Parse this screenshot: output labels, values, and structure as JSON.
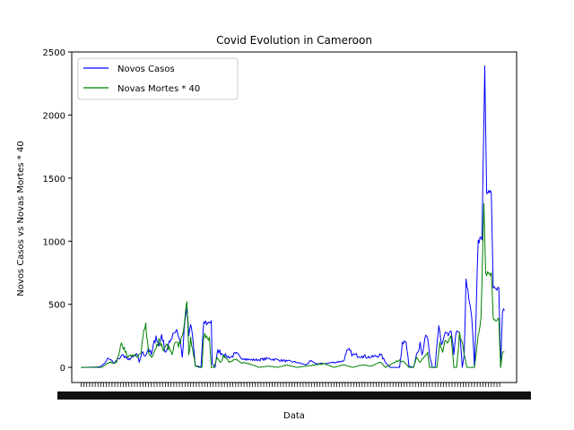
{
  "chart_data": {
    "type": "line",
    "title": "Covid Evolution in Cameroon",
    "xlabel": "Data",
    "ylabel": "Novos Casos vs Novas Mortes * 40",
    "ylim": [
      -120,
      2500
    ],
    "y_ticks": [
      0,
      500,
      1000,
      1500,
      2000,
      2500
    ],
    "x_ticks_note": "dense overlapping date labels (unreadable)",
    "x_count": 450,
    "legend": "top-left",
    "grid": false,
    "colors": {
      "Novos Casos": "#0000ff",
      "Novas Mortes * 40": "#008000"
    },
    "series": [
      {
        "name": "Novos Casos",
        "keypoints": [
          [
            0,
            0
          ],
          [
            15,
            2
          ],
          [
            20,
            5
          ],
          [
            25,
            30
          ],
          [
            28,
            70
          ],
          [
            32,
            60
          ],
          [
            35,
            30
          ],
          [
            40,
            70
          ],
          [
            45,
            100
          ],
          [
            50,
            60
          ],
          [
            55,
            80
          ],
          [
            60,
            100
          ],
          [
            62,
            40
          ],
          [
            65,
            120
          ],
          [
            68,
            90
          ],
          [
            72,
            150
          ],
          [
            75,
            100
          ],
          [
            80,
            250
          ],
          [
            83,
            170
          ],
          [
            86,
            260
          ],
          [
            90,
            120
          ],
          [
            95,
            200
          ],
          [
            98,
            270
          ],
          [
            102,
            300
          ],
          [
            106,
            200
          ],
          [
            108,
            80
          ],
          [
            111,
            380
          ],
          [
            113,
            470
          ],
          [
            115,
            250
          ],
          [
            117,
            340
          ],
          [
            119,
            250
          ],
          [
            122,
            10
          ],
          [
            125,
            10
          ],
          [
            128,
            0
          ],
          [
            131,
            360
          ],
          [
            135,
            350
          ],
          [
            139,
            370
          ],
          [
            140,
            30
          ],
          [
            143,
            0
          ],
          [
            146,
            140
          ],
          [
            150,
            110
          ],
          [
            155,
            90
          ],
          [
            160,
            80
          ],
          [
            165,
            110
          ],
          [
            170,
            80
          ],
          [
            175,
            70
          ],
          [
            180,
            60
          ],
          [
            190,
            60
          ],
          [
            200,
            70
          ],
          [
            210,
            60
          ],
          [
            220,
            50
          ],
          [
            230,
            40
          ],
          [
            240,
            20
          ],
          [
            245,
            50
          ],
          [
            250,
            30
          ],
          [
            260,
            30
          ],
          [
            270,
            40
          ],
          [
            280,
            50
          ],
          [
            285,
            140
          ],
          [
            290,
            100
          ],
          [
            300,
            90
          ],
          [
            310,
            80
          ],
          [
            320,
            100
          ],
          [
            325,
            40
          ],
          [
            330,
            0
          ],
          [
            340,
            0
          ],
          [
            343,
            200
          ],
          [
            347,
            200
          ],
          [
            350,
            10
          ],
          [
            355,
            0
          ],
          [
            358,
            100
          ],
          [
            362,
            200
          ],
          [
            364,
            100
          ],
          [
            367,
            230
          ],
          [
            370,
            230
          ],
          [
            372,
            100
          ],
          [
            375,
            0
          ],
          [
            378,
            0
          ],
          [
            382,
            330
          ],
          [
            385,
            180
          ],
          [
            389,
            280
          ],
          [
            392,
            250
          ],
          [
            395,
            290
          ],
          [
            398,
            100
          ],
          [
            401,
            290
          ],
          [
            404,
            280
          ],
          [
            407,
            0
          ],
          [
            409,
            100
          ],
          [
            411,
            700
          ],
          [
            414,
            540
          ],
          [
            417,
            400
          ],
          [
            420,
            0
          ],
          [
            424,
            1010
          ],
          [
            428,
            1010
          ],
          [
            431,
            2390
          ],
          [
            433,
            1380
          ],
          [
            438,
            1380
          ],
          [
            440,
            630
          ],
          [
            446,
            630
          ],
          [
            448,
            0
          ],
          [
            450,
            440
          ],
          [
            452,
            450
          ]
        ]
      },
      {
        "name": "Novas Mortes * 40",
        "keypoints": [
          [
            0,
            0
          ],
          [
            15,
            0
          ],
          [
            22,
            0
          ],
          [
            30,
            40
          ],
          [
            38,
            40
          ],
          [
            42,
            170
          ],
          [
            46,
            160
          ],
          [
            50,
            80
          ],
          [
            55,
            100
          ],
          [
            60,
            80
          ],
          [
            64,
            110
          ],
          [
            67,
            300
          ],
          [
            69,
            350
          ],
          [
            72,
            120
          ],
          [
            75,
            80
          ],
          [
            80,
            150
          ],
          [
            84,
            220
          ],
          [
            88,
            130
          ],
          [
            92,
            180
          ],
          [
            97,
            100
          ],
          [
            101,
            200
          ],
          [
            104,
            160
          ],
          [
            108,
            250
          ],
          [
            111,
            400
          ],
          [
            113,
            520
          ],
          [
            115,
            100
          ],
          [
            117,
            240
          ],
          [
            119,
            150
          ],
          [
            122,
            10
          ],
          [
            126,
            0
          ],
          [
            129,
            0
          ],
          [
            131,
            240
          ],
          [
            134,
            250
          ],
          [
            137,
            240
          ],
          [
            139,
            0
          ],
          [
            142,
            0
          ],
          [
            145,
            80
          ],
          [
            149,
            40
          ],
          [
            152,
            100
          ],
          [
            158,
            40
          ],
          [
            165,
            60
          ],
          [
            170,
            40
          ],
          [
            180,
            30
          ],
          [
            190,
            0
          ],
          [
            200,
            10
          ],
          [
            210,
            0
          ],
          [
            220,
            20
          ],
          [
            230,
            0
          ],
          [
            240,
            10
          ],
          [
            250,
            20
          ],
          [
            260,
            30
          ],
          [
            270,
            0
          ],
          [
            280,
            20
          ],
          [
            290,
            0
          ],
          [
            300,
            20
          ],
          [
            310,
            10
          ],
          [
            320,
            40
          ],
          [
            325,
            0
          ],
          [
            335,
            40
          ],
          [
            340,
            60
          ],
          [
            345,
            40
          ],
          [
            350,
            0
          ],
          [
            355,
            0
          ],
          [
            358,
            80
          ],
          [
            362,
            40
          ],
          [
            366,
            80
          ],
          [
            370,
            120
          ],
          [
            372,
            0
          ],
          [
            376,
            0
          ],
          [
            380,
            0
          ],
          [
            383,
            200
          ],
          [
            386,
            120
          ],
          [
            389,
            210
          ],
          [
            392,
            200
          ],
          [
            395,
            250
          ],
          [
            398,
            0
          ],
          [
            401,
            0
          ],
          [
            404,
            280
          ],
          [
            407,
            200
          ],
          [
            409,
            100
          ],
          [
            412,
            0
          ],
          [
            416,
            0
          ],
          [
            420,
            0
          ],
          [
            424,
            260
          ],
          [
            427,
            400
          ],
          [
            430,
            1300
          ],
          [
            432,
            750
          ],
          [
            438,
            750
          ],
          [
            440,
            390
          ],
          [
            446,
            390
          ],
          [
            448,
            0
          ],
          [
            450,
            120
          ],
          [
            452,
            120
          ]
        ]
      }
    ]
  }
}
